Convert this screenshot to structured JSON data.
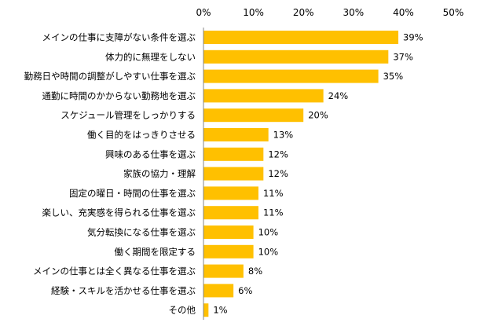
{
  "chart_data": {
    "type": "bar",
    "orientation": "horizontal",
    "title": "",
    "xlabel": "",
    "ylabel": "",
    "xlim": [
      0,
      50
    ],
    "x_ticks": [
      0,
      10,
      20,
      30,
      40,
      50
    ],
    "tick_suffix": "%",
    "x_axis_position": "top",
    "grid": false,
    "legend": false,
    "bar_color": "#FFC000",
    "axis_color": "#868686",
    "categories": [
      "メインの仕事に支障がない条件を選ぶ",
      "体力的に無理をしない",
      "勤務日や時間の調整がしやすい仕事を選ぶ",
      "通勤に時間のかからない勤務地を選ぶ",
      "スケジュール管理をしっかりする",
      "働く目的をはっきりさせる",
      "興味のある仕事を選ぶ",
      "家族の協力・理解",
      "固定の曜日・時間の仕事を選ぶ",
      "楽しい、充実感を得られる仕事を選ぶ",
      "気分転換になる仕事を選ぶ",
      "働く期間を限定する",
      "メインの仕事とは全く異なる仕事を選ぶ",
      "経験・スキルを活かせる仕事を選ぶ",
      "その他"
    ],
    "values": [
      39,
      37,
      35,
      24,
      20,
      13,
      12,
      12,
      11,
      11,
      10,
      10,
      8,
      6,
      1
    ],
    "value_labels": [
      "39%",
      "37%",
      "35%",
      "24%",
      "20%",
      "13%",
      "12%",
      "12%",
      "11%",
      "11%",
      "10%",
      "10%",
      "8%",
      "6%",
      "1%"
    ],
    "tick_labels": [
      "0%",
      "10%",
      "20%",
      "30%",
      "40%",
      "50%"
    ]
  }
}
